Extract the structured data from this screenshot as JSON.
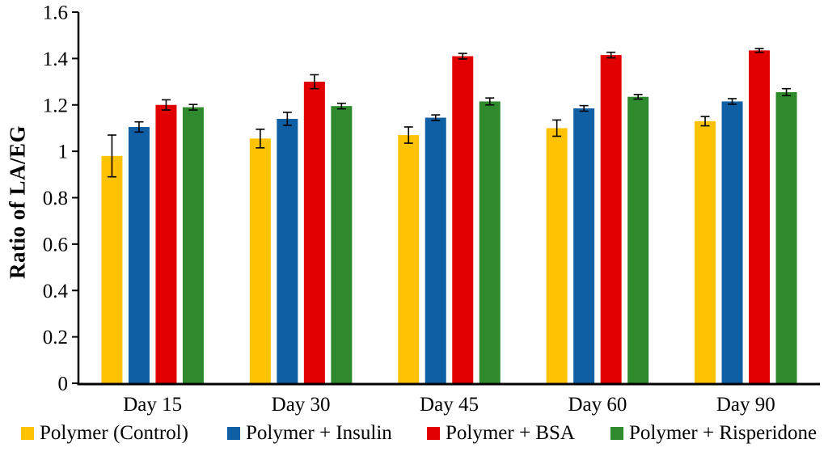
{
  "chart_data": {
    "type": "bar",
    "title": "",
    "xlabel": "",
    "ylabel": "Ratio of LA/EG",
    "ylim": [
      0,
      1.6
    ],
    "grid": false,
    "error_bars": true,
    "legend_position": "bottom",
    "y_tick_values": [
      0,
      0.2,
      0.4,
      0.6,
      0.8,
      1,
      1.2,
      1.4,
      1.6
    ],
    "y_tick_labels": [
      "0",
      "0.2",
      "0.4",
      "0.6",
      "0.8",
      "1",
      "1.2",
      "1.4",
      "1.6"
    ],
    "categories": [
      "Day 15",
      "Day 30",
      "Day 45",
      "Day 60",
      "Day 90"
    ],
    "series": [
      {
        "name": "Polymer (Control)",
        "color": "#FFC303",
        "values": [
          0.98,
          1.055,
          1.07,
          1.1,
          1.13
        ],
        "errors": [
          0.09,
          0.04,
          0.035,
          0.035,
          0.02
        ]
      },
      {
        "name": "Polymer + Insulin",
        "color": "#0F5FA5",
        "values": [
          1.105,
          1.14,
          1.145,
          1.185,
          1.215
        ],
        "errors": [
          0.022,
          0.028,
          0.012,
          0.012,
          0.012
        ]
      },
      {
        "name": "Polymer + BSA",
        "color": "#E00000",
        "values": [
          1.2,
          1.3,
          1.41,
          1.415,
          1.435
        ],
        "errors": [
          0.022,
          0.03,
          0.012,
          0.012,
          0.008
        ]
      },
      {
        "name": "Polymer + Risperidone",
        "color": "#2F8A2D",
        "values": [
          1.19,
          1.195,
          1.215,
          1.235,
          1.255
        ],
        "errors": [
          0.012,
          0.012,
          0.015,
          0.01,
          0.015
        ]
      }
    ]
  }
}
